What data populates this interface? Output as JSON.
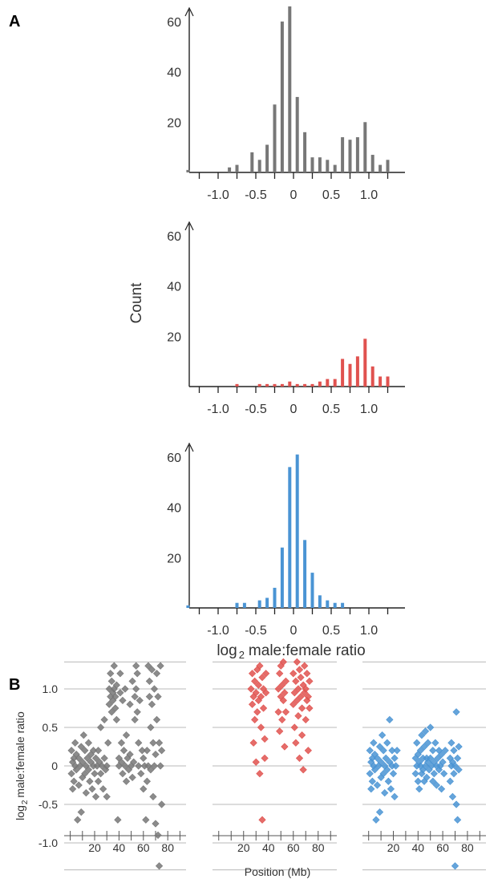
{
  "panel_labels": {
    "a": "A",
    "b": "B"
  },
  "histogram_axes": {
    "ylabel": "Count",
    "xlabel_prefix": "log",
    "xlabel_sub": "2",
    "xlabel_suffix": "male:female ratio",
    "xticks": [
      "-1.0",
      "-0.5",
      "0",
      "0.5",
      "1.0"
    ],
    "xtick_values": [
      -1.0,
      -0.5,
      0,
      0.5,
      1.0
    ],
    "yticks": [
      "20",
      "40",
      "60"
    ],
    "ytick_values": [
      20,
      40,
      60
    ]
  },
  "scatter_axes": {
    "ylabel_prefix": "log",
    "ylabel_sub": "2",
    "ylabel_suffix": "male:female ratio",
    "xlabel": "Position (Mb)",
    "yticks": [
      "1.0",
      "0.5",
      "0",
      "-0.5",
      "-1.0"
    ],
    "ytick_values": [
      1.0,
      0.5,
      0,
      -0.5,
      -1.0
    ],
    "xticks": [
      "20",
      "40",
      "60",
      "80"
    ],
    "xtick_values": [
      20,
      40,
      60,
      80
    ]
  },
  "colors": {
    "all": "#777777",
    "red": "#e0524f",
    "blue": "#4a94d4",
    "grid": "#b8b8b8"
  },
  "chart_data": [
    {
      "type": "bar",
      "panel": "A",
      "color_key": "all",
      "x": [
        -1.4,
        -0.85,
        -0.75,
        -0.55,
        -0.45,
        -0.35,
        -0.25,
        -0.15,
        -0.05,
        0.05,
        0.15,
        0.25,
        0.35,
        0.45,
        0.55,
        0.65,
        0.75,
        0.85,
        0.95,
        1.05,
        1.15,
        1.25
      ],
      "values": [
        1,
        2,
        3,
        8,
        5,
        11,
        27,
        60,
        66,
        30,
        16,
        6,
        6,
        5,
        3,
        14,
        13,
        14,
        20,
        7,
        3,
        5
      ],
      "xlim": [
        -1.4,
        1.4
      ],
      "ylim": [
        0,
        66
      ]
    },
    {
      "type": "bar",
      "panel": "A",
      "color_key": "red",
      "x": [
        -0.75,
        -0.45,
        -0.35,
        -0.25,
        -0.15,
        -0.05,
        0.05,
        0.15,
        0.25,
        0.35,
        0.45,
        0.55,
        0.65,
        0.75,
        0.85,
        0.95,
        1.05,
        1.15,
        1.25
      ],
      "values": [
        1,
        1,
        1,
        1,
        1,
        2,
        1,
        1,
        1,
        2,
        3,
        3,
        11,
        9,
        12,
        19,
        8,
        4,
        4
      ],
      "xlim": [
        -1.4,
        1.4
      ],
      "ylim": [
        0,
        66
      ]
    },
    {
      "type": "bar",
      "panel": "A",
      "color_key": "blue",
      "x": [
        -1.4,
        -0.75,
        -0.65,
        -0.45,
        -0.35,
        -0.25,
        -0.15,
        -0.05,
        0.05,
        0.15,
        0.25,
        0.35,
        0.45,
        0.55,
        0.65
      ],
      "values": [
        1,
        2,
        2,
        3,
        4,
        8,
        24,
        56,
        61,
        27,
        14,
        5,
        3,
        2,
        2
      ],
      "xlim": [
        -1.4,
        1.4
      ],
      "ylim": [
        0,
        66
      ]
    },
    {
      "type": "scatter",
      "panel": "B",
      "color_key": "all",
      "xlim": [
        -5,
        95
      ],
      "ylim": [
        -1.45,
        1.45
      ],
      "points": [
        [
          1,
          0.2
        ],
        [
          1,
          -0.1
        ],
        [
          2,
          0.05
        ],
        [
          2,
          -0.3
        ],
        [
          3,
          0.1
        ],
        [
          3,
          -0.2
        ],
        [
          4,
          0.3
        ],
        [
          4,
          0.0
        ],
        [
          5,
          -0.05
        ],
        [
          5,
          0.15
        ],
        [
          6,
          -0.7
        ],
        [
          7,
          0.1
        ],
        [
          7,
          -0.25
        ],
        [
          8,
          0.0
        ],
        [
          9,
          -0.6
        ],
        [
          9,
          0.25
        ],
        [
          10,
          -0.15
        ],
        [
          10,
          0.05
        ],
        [
          11,
          0.4
        ],
        [
          12,
          -0.1
        ],
        [
          12,
          0.2
        ],
        [
          13,
          0.0
        ],
        [
          13,
          -0.35
        ],
        [
          14,
          0.1
        ],
        [
          15,
          -0.05
        ],
        [
          15,
          0.3
        ],
        [
          16,
          -0.2
        ],
        [
          17,
          0.05
        ],
        [
          17,
          0.15
        ],
        [
          18,
          -0.3
        ],
        [
          19,
          0.0
        ],
        [
          19,
          0.2
        ],
        [
          20,
          -0.1
        ],
        [
          21,
          0.1
        ],
        [
          21,
          -0.4
        ],
        [
          22,
          0.0
        ],
        [
          23,
          0.2
        ],
        [
          23,
          -0.2
        ],
        [
          24,
          0.05
        ],
        [
          25,
          0.5
        ],
        [
          25,
          -0.1
        ],
        [
          26,
          0.0
        ],
        [
          27,
          -0.3
        ],
        [
          28,
          0.6
        ],
        [
          28,
          0.1
        ],
        [
          29,
          -0.05
        ],
        [
          30,
          0.0
        ],
        [
          30,
          -0.4
        ],
        [
          31,
          0.3
        ],
        [
          32,
          0.8
        ],
        [
          32,
          1.0
        ],
        [
          33,
          0.9
        ],
        [
          33,
          1.2
        ],
        [
          34,
          0.7
        ],
        [
          34,
          1.1
        ],
        [
          35,
          0.85
        ],
        [
          35,
          0.95
        ],
        [
          36,
          1.0
        ],
        [
          36,
          1.3
        ],
        [
          37,
          0.9
        ],
        [
          37,
          0.75
        ],
        [
          38,
          1.05
        ],
        [
          38,
          0.6
        ],
        [
          39,
          -0.7
        ],
        [
          40,
          0.1
        ],
        [
          40,
          0.0
        ],
        [
          41,
          0.95
        ],
        [
          41,
          1.2
        ],
        [
          42,
          0.3
        ],
        [
          42,
          0.05
        ],
        [
          43,
          0.85
        ],
        [
          43,
          -0.1
        ],
        [
          44,
          0.2
        ],
        [
          45,
          1.0
        ],
        [
          45,
          0.0
        ],
        [
          46,
          -0.2
        ],
        [
          46,
          0.4
        ],
        [
          47,
          0.1
        ],
        [
          48,
          -0.05
        ],
        [
          49,
          0.8
        ],
        [
          49,
          0.15
        ],
        [
          50,
          0.0
        ],
        [
          51,
          1.1
        ],
        [
          51,
          -0.15
        ],
        [
          52,
          0.05
        ],
        [
          53,
          0.6
        ],
        [
          53,
          0.9
        ],
        [
          54,
          1.0
        ],
        [
          54,
          1.3
        ],
        [
          55,
          1.2
        ],
        [
          55,
          0.7
        ],
        [
          56,
          0.3
        ],
        [
          56,
          0.0
        ],
        [
          57,
          0.85
        ],
        [
          58,
          -0.1
        ],
        [
          59,
          0.2
        ],
        [
          60,
          0.1
        ],
        [
          60,
          -0.3
        ],
        [
          61,
          0.0
        ],
        [
          62,
          -0.7
        ],
        [
          63,
          0.2
        ],
        [
          63,
          -0.2
        ],
        [
          64,
          1.3
        ],
        [
          64,
          0.0
        ],
        [
          65,
          0.9
        ],
        [
          65,
          1.1
        ],
        [
          66,
          0.5
        ],
        [
          66,
          -0.05
        ],
        [
          67,
          1.25
        ],
        [
          67,
          0.8
        ],
        [
          68,
          0.3
        ],
        [
          68,
          -0.4
        ],
        [
          69,
          0.0
        ],
        [
          69,
          1.0
        ],
        [
          70,
          -0.75
        ],
        [
          70,
          0.15
        ],
        [
          71,
          1.2
        ],
        [
          71,
          0.6
        ],
        [
          72,
          -0.9
        ],
        [
          72,
          0.9
        ],
        [
          73,
          0.3
        ],
        [
          73,
          -1.3
        ],
        [
          74,
          0.0
        ],
        [
          74,
          1.3
        ],
        [
          75,
          0.2
        ],
        [
          75,
          -0.5
        ]
      ]
    },
    {
      "type": "scatter",
      "panel": "B",
      "color_key": "red",
      "xlim": [
        -5,
        95
      ],
      "ylim": [
        -1.45,
        1.45
      ],
      "points": [
        [
          26,
          1.0
        ],
        [
          27,
          0.8
        ],
        [
          27,
          1.2
        ],
        [
          28,
          0.9
        ],
        [
          28,
          0.3
        ],
        [
          29,
          1.1
        ],
        [
          29,
          0.6
        ],
        [
          30,
          0.95
        ],
        [
          30,
          0.05
        ],
        [
          31,
          1.25
        ],
        [
          31,
          0.7
        ],
        [
          32,
          0.85
        ],
        [
          32,
          1.05
        ],
        [
          33,
          1.3
        ],
        [
          33,
          -0.1
        ],
        [
          34,
          0.9
        ],
        [
          34,
          0.5
        ],
        [
          35,
          1.15
        ],
        [
          35,
          -0.7
        ],
        [
          36,
          0.75
        ],
        [
          36,
          1.0
        ],
        [
          37,
          0.35
        ],
        [
          37,
          0.1
        ],
        [
          38,
          0.95
        ],
        [
          38,
          1.2
        ],
        [
          48,
          1.0
        ],
        [
          48,
          0.7
        ],
        [
          49,
          1.2
        ],
        [
          49,
          0.45
        ],
        [
          50,
          0.9
        ],
        [
          50,
          1.3
        ],
        [
          51,
          0.6
        ],
        [
          51,
          1.05
        ],
        [
          52,
          0.85
        ],
        [
          52,
          1.35
        ],
        [
          53,
          0.25
        ],
        [
          53,
          0.95
        ],
        [
          54,
          1.1
        ],
        [
          54,
          0.7
        ],
        [
          60,
          0.8
        ],
        [
          60,
          1.2
        ],
        [
          61,
          0.95
        ],
        [
          61,
          0.5
        ],
        [
          62,
          1.1
        ],
        [
          62,
          0.3
        ],
        [
          63,
          0.85
        ],
        [
          63,
          1.35
        ],
        [
          64,
          1.0
        ],
        [
          64,
          0.65
        ],
        [
          65,
          1.25
        ],
        [
          65,
          0.1
        ],
        [
          66,
          0.9
        ],
        [
          66,
          1.15
        ],
        [
          67,
          0.75
        ],
        [
          67,
          0.4
        ],
        [
          68,
          1.05
        ],
        [
          68,
          -0.05
        ],
        [
          69,
          0.95
        ],
        [
          69,
          1.3
        ],
        [
          70,
          0.6
        ],
        [
          70,
          1.0
        ],
        [
          71,
          0.85
        ],
        [
          71,
          1.2
        ],
        [
          72,
          0.2
        ],
        [
          72,
          0.9
        ],
        [
          73,
          1.1
        ],
        [
          73,
          0.75
        ]
      ]
    },
    {
      "type": "scatter",
      "panel": "B",
      "color_key": "blue",
      "xlim": [
        -5,
        95
      ],
      "ylim": [
        -1.45,
        1.45
      ],
      "points": [
        [
          1,
          0.2
        ],
        [
          1,
          -0.1
        ],
        [
          2,
          0.05
        ],
        [
          2,
          -0.3
        ],
        [
          3,
          0.1
        ],
        [
          3,
          -0.2
        ],
        [
          4,
          0.3
        ],
        [
          4,
          0.0
        ],
        [
          5,
          -0.05
        ],
        [
          5,
          0.15
        ],
        [
          6,
          -0.7
        ],
        [
          7,
          0.1
        ],
        [
          7,
          -0.25
        ],
        [
          8,
          0.0
        ],
        [
          9,
          -0.6
        ],
        [
          9,
          0.25
        ],
        [
          10,
          -0.15
        ],
        [
          10,
          0.05
        ],
        [
          11,
          0.4
        ],
        [
          12,
          -0.1
        ],
        [
          12,
          0.2
        ],
        [
          13,
          0.0
        ],
        [
          13,
          -0.35
        ],
        [
          14,
          0.1
        ],
        [
          15,
          -0.05
        ],
        [
          15,
          0.3
        ],
        [
          16,
          -0.2
        ],
        [
          17,
          0.05
        ],
        [
          17,
          0.6
        ],
        [
          18,
          -0.3
        ],
        [
          19,
          0.0
        ],
        [
          19,
          0.2
        ],
        [
          20,
          -0.1
        ],
        [
          21,
          0.1
        ],
        [
          21,
          -0.4
        ],
        [
          22,
          0.0
        ],
        [
          23,
          0.2
        ],
        [
          38,
          0.1
        ],
        [
          38,
          -0.1
        ],
        [
          39,
          0.3
        ],
        [
          39,
          0.0
        ],
        [
          40,
          -0.2
        ],
        [
          40,
          0.15
        ],
        [
          41,
          0.05
        ],
        [
          41,
          -0.3
        ],
        [
          42,
          0.2
        ],
        [
          42,
          0.0
        ],
        [
          43,
          -0.1
        ],
        [
          43,
          0.4
        ],
        [
          44,
          0.1
        ],
        [
          44,
          -0.05
        ],
        [
          45,
          0.25
        ],
        [
          45,
          -0.2
        ],
        [
          46,
          0.0
        ],
        [
          46,
          0.45
        ],
        [
          47,
          0.1
        ],
        [
          47,
          -0.15
        ],
        [
          48,
          0.3
        ],
        [
          48,
          0.05
        ],
        [
          49,
          -0.05
        ],
        [
          50,
          0.5
        ],
        [
          50,
          0.1
        ],
        [
          51,
          0.0
        ],
        [
          52,
          -0.2
        ],
        [
          52,
          0.2
        ],
        [
          53,
          0.05
        ],
        [
          53,
          -0.1
        ],
        [
          54,
          0.3
        ],
        [
          55,
          0.0
        ],
        [
          55,
          -0.25
        ],
        [
          56,
          0.1
        ],
        [
          57,
          0.2
        ],
        [
          57,
          -0.05
        ],
        [
          58,
          0.0
        ],
        [
          59,
          -0.3
        ],
        [
          59,
          0.15
        ],
        [
          60,
          0.05
        ],
        [
          61,
          -0.1
        ],
        [
          62,
          0.2
        ],
        [
          66,
          0.1
        ],
        [
          66,
          -0.2
        ],
        [
          67,
          0.0
        ],
        [
          67,
          0.3
        ],
        [
          68,
          -0.4
        ],
        [
          68,
          0.05
        ],
        [
          69,
          0.2
        ],
        [
          69,
          -0.1
        ],
        [
          70,
          0.0
        ],
        [
          70,
          -1.3
        ],
        [
          71,
          0.7
        ],
        [
          71,
          -0.5
        ],
        [
          72,
          0.1
        ],
        [
          72,
          -0.7
        ],
        [
          73,
          0.25
        ],
        [
          73,
          -0.05
        ]
      ]
    }
  ]
}
